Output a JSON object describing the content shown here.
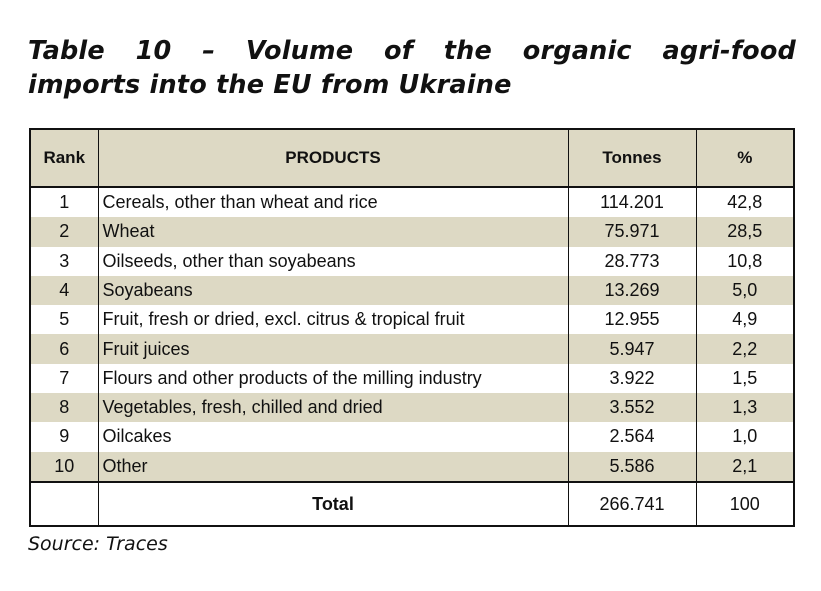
{
  "title": {
    "line1_words": [
      "Table",
      "10",
      "–",
      "Volume",
      "of",
      "the",
      "organic",
      "agri-food"
    ],
    "line2": "imports into the EU from Ukraine"
  },
  "table": {
    "headers": {
      "rank": "Rank",
      "products": "PRODUCTS",
      "tonnes": "Tonnes",
      "percent": "%"
    },
    "rows": [
      {
        "rank": "1",
        "product": "Cereals, other than wheat and rice",
        "tonnes": "114.201",
        "percent": "42,8"
      },
      {
        "rank": "2",
        "product": "Wheat",
        "tonnes": "75.971",
        "percent": "28,5"
      },
      {
        "rank": "3",
        "product": "Oilseeds, other than soyabeans",
        "tonnes": "28.773",
        "percent": "10,8"
      },
      {
        "rank": "4",
        "product": "Soyabeans",
        "tonnes": "13.269",
        "percent": "5,0"
      },
      {
        "rank": "5",
        "product": "Fruit, fresh or dried, excl. citrus & tropical fruit",
        "tonnes": "12.955",
        "percent": "4,9"
      },
      {
        "rank": "6",
        "product": "Fruit juices",
        "tonnes": "5.947",
        "percent": "2,2"
      },
      {
        "rank": "7",
        "product": "Flours and other products of the milling industry",
        "tonnes": "3.922",
        "percent": "1,5"
      },
      {
        "rank": "8",
        "product": "Vegetables, fresh, chilled and dried",
        "tonnes": "3.552",
        "percent": "1,3"
      },
      {
        "rank": "9",
        "product": "Oilcakes",
        "tonnes": "2.564",
        "percent": "1,0"
      },
      {
        "rank": "10",
        "product": "Other",
        "tonnes": "5.586",
        "percent": "2,1"
      }
    ],
    "total": {
      "label": "Total",
      "tonnes": "266.741",
      "percent": "100"
    }
  },
  "source": "Source: Traces",
  "colors": {
    "band": "#ddd9c4",
    "border": "#111111"
  }
}
